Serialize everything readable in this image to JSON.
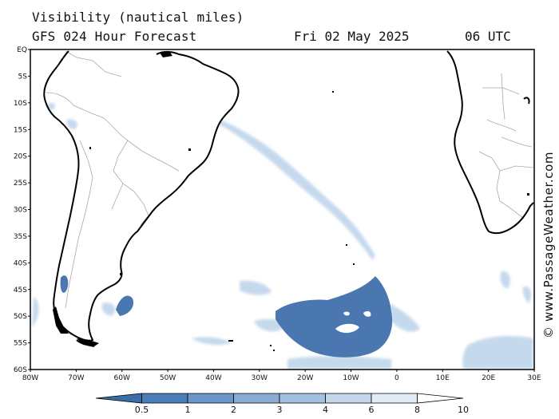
{
  "header": {
    "title": "Visibility (nautical miles)",
    "subtitle": "GFS 024 Hour Forecast",
    "date": "Fri 02 May 2025",
    "time": "06 UTC"
  },
  "credit": "© www.PassageWeather.com",
  "map": {
    "lat_labels": [
      "EQ",
      "5S",
      "10S",
      "15S",
      "20S",
      "25S",
      "30S",
      "35S",
      "40S",
      "45S",
      "50S",
      "55S",
      "60S"
    ],
    "lon_labels": [
      "80W",
      "70W",
      "60W",
      "50W",
      "40W",
      "30W",
      "20W",
      "10W",
      "0",
      "10E",
      "20E",
      "30E"
    ],
    "lat_range": [
      -60,
      0
    ],
    "lon_range": [
      -80,
      30
    ],
    "colors": {
      "land_outline": "#000000",
      "border": "#a8a8a8",
      "dense_fog": "#4a77b0",
      "light_haze": "#bcd3ea"
    }
  },
  "colorbar": {
    "labels": [
      "0.5",
      "1",
      "2",
      "3",
      "4",
      "6",
      "8",
      "10"
    ],
    "colors": [
      "#3a6ea8",
      "#4a7eb8",
      "#6b96c8",
      "#88acd4",
      "#a4c0e0",
      "#c2d6ec",
      "#e0ebf6",
      "#ffffff"
    ]
  }
}
